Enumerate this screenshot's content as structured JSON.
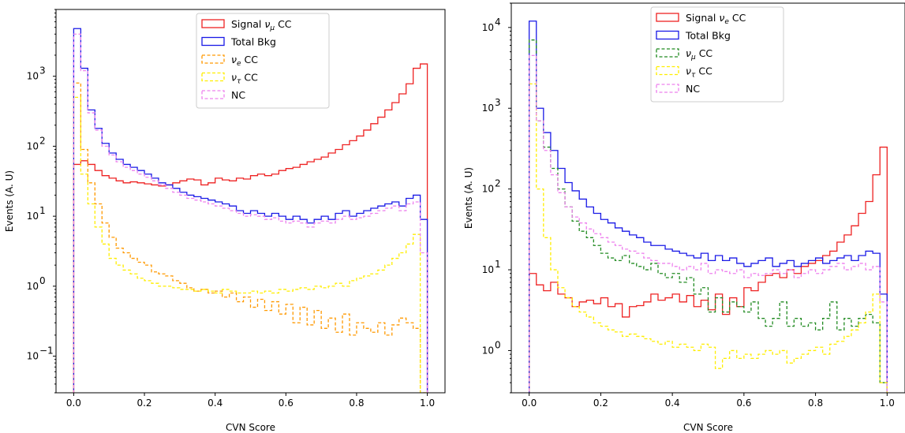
{
  "chart_data": [
    {
      "type": "line",
      "xlabel": "CVN Score",
      "ylabel": "Events (A. U)",
      "yscale": "log",
      "xlim": [
        -0.05,
        1.05
      ],
      "ylim": [
        0.03,
        9000
      ],
      "xticks": [
        0.0,
        0.2,
        0.4,
        0.6,
        0.8,
        1.0
      ],
      "xtick_labels": [
        "0.0",
        "0.2",
        "0.4",
        "0.6",
        "0.8",
        "1.0"
      ],
      "yticks": [
        0.1,
        1,
        10,
        100,
        1000
      ],
      "ytick_labels": [
        "10",
        "10",
        "10",
        "10",
        "10"
      ],
      "ytick_exps": [
        "−1",
        "0",
        "1",
        "2",
        "3"
      ],
      "legend_position": "top-center",
      "bin_edges_range": [
        0,
        1
      ],
      "bins": 50,
      "series": [
        {
          "name": "Signal ν_μ CC",
          "label_base": "Signal ",
          "label_sym": "ν",
          "label_sub": "μ",
          "label_tail": " CC",
          "color": "#ee2222",
          "style": "solid",
          "values": [
            55,
            62,
            55,
            45,
            38,
            35,
            32,
            30,
            31,
            30,
            29,
            28,
            27,
            28,
            30,
            32,
            34,
            33,
            28,
            30,
            35,
            33,
            32,
            35,
            34,
            38,
            40,
            38,
            40,
            45,
            48,
            50,
            55,
            60,
            65,
            70,
            80,
            90,
            105,
            120,
            140,
            170,
            210,
            260,
            330,
            420,
            560,
            780,
            1300,
            1500
          ]
        },
        {
          "name": "Total Bkg",
          "label_base": "Total Bkg",
          "label_sym": "",
          "label_sub": "",
          "label_tail": "",
          "color": "#1a1ae6",
          "style": "solid",
          "values": [
            4800,
            1300,
            330,
            180,
            110,
            80,
            65,
            55,
            50,
            45,
            40,
            35,
            30,
            28,
            25,
            22,
            20,
            19,
            18,
            17,
            16,
            15,
            14,
            12,
            11,
            12,
            11,
            10,
            11,
            10,
            9,
            10,
            9,
            8,
            9,
            10,
            9,
            11,
            12,
            10,
            11,
            12,
            13,
            14,
            15,
            16,
            14,
            18,
            20,
            9
          ]
        },
        {
          "name": "ν_e CC",
          "label_base": "",
          "label_sym": "ν",
          "label_sub": "e",
          "label_tail": " CC",
          "color": "#ff9900",
          "style": "dashed",
          "values": [
            800,
            90,
            30,
            15,
            8,
            5,
            3.5,
            3,
            2.5,
            2.2,
            2,
            1.6,
            1.5,
            1.4,
            1.2,
            1.1,
            0.95,
            0.85,
            0.9,
            0.8,
            0.85,
            0.7,
            0.8,
            0.6,
            0.7,
            0.5,
            0.65,
            0.45,
            0.6,
            0.4,
            0.55,
            0.3,
            0.5,
            0.28,
            0.45,
            0.25,
            0.35,
            0.22,
            0.4,
            0.2,
            0.3,
            0.25,
            0.22,
            0.3,
            0.2,
            0.28,
            0.35,
            0.3,
            0.25,
            0.03
          ]
        },
        {
          "name": "ν_τ CC",
          "label_base": "",
          "label_sym": "ν",
          "label_sub": "τ",
          "label_tail": " CC",
          "color": "#ffee00",
          "style": "dashed",
          "values": [
            500,
            40,
            15,
            7,
            4,
            2.5,
            2,
            1.7,
            1.5,
            1.3,
            1.2,
            1.1,
            1.0,
            1.0,
            0.95,
            0.9,
            0.9,
            0.85,
            0.9,
            0.85,
            0.8,
            0.9,
            0.85,
            0.8,
            0.8,
            0.85,
            0.8,
            0.85,
            0.8,
            0.9,
            0.85,
            0.9,
            0.95,
            0.9,
            1.0,
            0.95,
            1.0,
            1.1,
            1.0,
            1.2,
            1.3,
            1.4,
            1.5,
            1.7,
            2.0,
            2.5,
            3,
            4,
            5.5,
            0.03
          ]
        },
        {
          "name": "NC",
          "label_base": "NC",
          "label_sym": "",
          "label_sub": "",
          "label_tail": "",
          "color": "#ee82ee",
          "style": "dashed",
          "values": [
            4000,
            1200,
            300,
            170,
            100,
            75,
            60,
            50,
            45,
            40,
            36,
            32,
            28,
            25,
            22,
            20,
            18,
            17,
            16,
            15,
            14,
            13,
            12,
            11,
            10,
            10.5,
            10,
            9,
            9.5,
            8.5,
            8,
            8.5,
            8,
            7,
            8,
            8.5,
            8,
            9,
            10,
            9,
            9.5,
            10,
            11,
            12,
            13,
            14,
            12,
            15,
            16,
            3
          ]
        }
      ]
    },
    {
      "type": "line",
      "xlabel": "CVN Score",
      "ylabel": "Events (A. U)",
      "yscale": "log",
      "xlim": [
        -0.05,
        1.05
      ],
      "ylim": [
        0.3,
        20000
      ],
      "xticks": [
        0.0,
        0.2,
        0.4,
        0.6,
        0.8,
        1.0
      ],
      "xtick_labels": [
        "0.0",
        "0.2",
        "0.4",
        "0.6",
        "0.8",
        "1.0"
      ],
      "yticks": [
        1,
        10,
        100,
        1000,
        10000
      ],
      "ytick_labels": [
        "10",
        "10",
        "10",
        "10",
        "10"
      ],
      "ytick_exps": [
        "0",
        "1",
        "2",
        "3",
        "4"
      ],
      "legend_position": "top-center",
      "bin_edges_range": [
        0,
        1
      ],
      "bins": 50,
      "series": [
        {
          "name": "Signal ν_e CC",
          "label_base": "Signal ",
          "label_sym": "ν",
          "label_sub": "e",
          "label_tail": " CC",
          "color": "#ee2222",
          "style": "solid",
          "values": [
            9,
            6.5,
            5.5,
            7,
            5,
            4.5,
            3.5,
            4,
            4.2,
            3.8,
            4.5,
            3.5,
            3.8,
            2.6,
            3.5,
            3.6,
            4,
            5,
            4.2,
            4.5,
            5,
            4,
            4.8,
            3.5,
            4.2,
            3.2,
            5,
            2.8,
            4.5,
            3.5,
            6,
            5.5,
            7,
            8.5,
            9,
            8,
            10,
            9,
            11,
            12,
            13,
            15,
            17,
            22,
            27,
            35,
            50,
            70,
            150,
            330
          ]
        },
        {
          "name": "Total Bkg",
          "label_base": "Total Bkg",
          "label_sym": "",
          "label_sub": "",
          "label_tail": "",
          "color": "#1a1ae6",
          "style": "solid",
          "values": [
            12000,
            1000,
            500,
            300,
            180,
            120,
            95,
            75,
            60,
            50,
            42,
            38,
            33,
            30,
            27,
            25,
            22,
            20,
            20,
            18,
            17,
            16,
            15,
            14,
            16,
            13,
            15,
            13,
            14,
            12,
            11,
            12,
            13,
            14,
            11,
            12,
            13,
            11,
            12,
            13,
            14,
            12,
            13,
            14,
            15,
            13,
            15,
            17,
            16,
            5
          ]
        },
        {
          "name": "ν_μ CC",
          "label_base": "",
          "label_sym": "ν",
          "label_sub": "μ",
          "label_tail": " CC",
          "color": "#228b22",
          "style": "dashed",
          "values": [
            7000,
            700,
            330,
            180,
            100,
            60,
            40,
            30,
            25,
            20,
            16,
            14,
            13,
            15,
            12,
            11,
            10,
            12,
            9,
            8,
            9,
            7,
            8,
            5,
            6,
            3,
            4.5,
            3,
            4,
            3.5,
            3,
            4,
            2.5,
            2,
            2.5,
            4,
            2,
            2.5,
            2,
            2.2,
            1.8,
            2.5,
            4,
            1.8,
            2.5,
            2,
            2.5,
            2.8,
            2.2,
            0.4
          ]
        },
        {
          "name": "ν_τ CC",
          "label_base": "",
          "label_sym": "ν",
          "label_sub": "τ",
          "label_tail": " CC",
          "color": "#ffee00",
          "style": "dashed",
          "values": [
            2000,
            100,
            25,
            10,
            6,
            4.5,
            3.5,
            3,
            2.6,
            2.2,
            2,
            1.8,
            1.7,
            1.5,
            1.6,
            1.5,
            1.4,
            1.3,
            1.2,
            1.3,
            1.1,
            1.2,
            1.1,
            1.0,
            1.2,
            1.1,
            0.6,
            0.8,
            1.0,
            0.8,
            0.9,
            0.8,
            0.9,
            1.0,
            0.9,
            1.0,
            0.7,
            0.8,
            0.9,
            1.0,
            1.1,
            0.9,
            1.2,
            1.3,
            1.5,
            1.8,
            2.2,
            3,
            5,
            0.4
          ]
        },
        {
          "name": "NC",
          "label_base": "NC",
          "label_sym": "",
          "label_sub": "",
          "label_tail": "",
          "color": "#ee82ee",
          "style": "dashed",
          "values": [
            4500,
            700,
            300,
            150,
            90,
            60,
            45,
            38,
            32,
            28,
            25,
            22,
            20,
            18,
            17,
            16,
            14,
            13,
            12,
            12,
            11,
            10,
            11,
            10,
            12,
            9,
            10,
            9.5,
            9,
            10,
            8,
            9,
            8.5,
            9,
            10,
            9,
            10,
            8,
            9,
            10,
            9,
            10,
            11,
            12,
            10,
            11,
            12,
            10,
            11,
            4
          ]
        }
      ]
    }
  ]
}
